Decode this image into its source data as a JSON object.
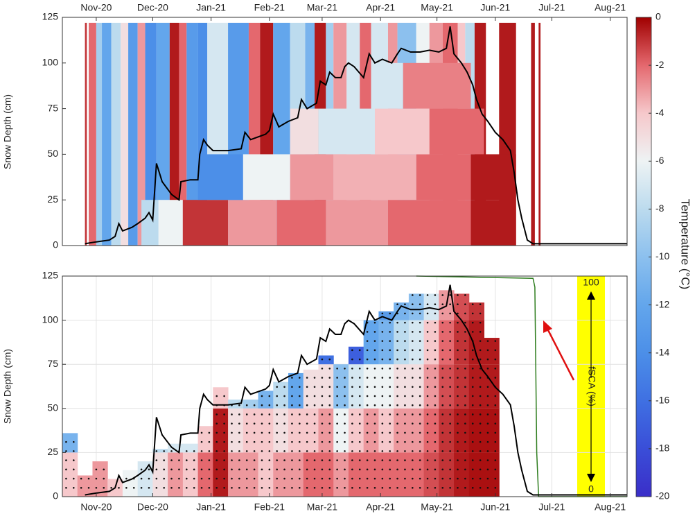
{
  "colorbar": {
    "label": "Temperature (°C)",
    "clim": [
      -20,
      0
    ],
    "ticks": [
      0,
      -2,
      -4,
      -6,
      -8,
      -10,
      -12,
      -14,
      -16,
      -18,
      -20
    ],
    "colors": [
      "#3a2ec8",
      "#3a4ed8",
      "#3f70e2",
      "#4c8fe8",
      "#63a6ec",
      "#8cc0ee",
      "#bcdbee",
      "#eef3f4",
      "#f6c8cb",
      "#e4686e",
      "#a00000"
    ]
  },
  "chart_data": [
    {
      "type": "stripes",
      "ylabel": "Snow Depth (cm)",
      "xlim": [
        0,
        300
      ],
      "ylim": [
        0,
        125
      ],
      "yticks": [
        0,
        25,
        50,
        75,
        100,
        125
      ],
      "grid": false,
      "xtick_side": "top",
      "xticks": [
        {
          "value": 18,
          "label": "Nov-20"
        },
        {
          "value": 48,
          "label": "Dec-20"
        },
        {
          "value": 79,
          "label": "Jan-21"
        },
        {
          "value": 110,
          "label": "Feb-21"
        },
        {
          "value": 138,
          "label": "Mar-21"
        },
        {
          "value": 169,
          "label": "Apr-21"
        },
        {
          "value": 199,
          "label": "May-21"
        },
        {
          "value": 230,
          "label": "Jun-21"
        },
        {
          "value": 260,
          "label": "Jul-21"
        },
        {
          "value": 291,
          "label": "Aug-21"
        }
      ],
      "cells": [
        [
          12,
          13,
          0,
          122,
          -1
        ],
        [
          14,
          18,
          0,
          122,
          -2
        ],
        [
          18,
          21,
          0,
          122,
          -9
        ],
        [
          21,
          26,
          0,
          122,
          -12
        ],
        [
          26,
          31,
          0,
          122,
          -8
        ],
        [
          31,
          35,
          0,
          122,
          -5
        ],
        [
          35,
          40,
          0,
          122,
          -13
        ],
        [
          40,
          44,
          0,
          122,
          -3
        ],
        [
          44,
          50,
          0,
          122,
          -14
        ],
        [
          50,
          57,
          0,
          122,
          -12
        ],
        [
          57,
          62,
          0,
          122,
          -0.5
        ],
        [
          62,
          66,
          0,
          122,
          -2
        ],
        [
          66,
          72,
          0,
          122,
          -13
        ],
        [
          72,
          77,
          0,
          122,
          -14
        ],
        [
          77,
          88,
          0,
          122,
          -7
        ],
        [
          88,
          99,
          0,
          122,
          -13
        ],
        [
          99,
          105,
          0,
          122,
          -2
        ],
        [
          105,
          112,
          0,
          122,
          -0.5
        ],
        [
          112,
          121,
          0,
          122,
          -12
        ],
        [
          121,
          129,
          0,
          122,
          -8
        ],
        [
          129,
          134,
          0,
          122,
          -11
        ],
        [
          134,
          140,
          0,
          122,
          -0.5
        ],
        [
          140,
          144,
          0,
          122,
          -9
        ],
        [
          144,
          151,
          0,
          122,
          -3
        ],
        [
          151,
          158,
          0,
          122,
          -7
        ],
        [
          158,
          164,
          0,
          122,
          -2
        ],
        [
          164,
          173,
          0,
          122,
          -7
        ],
        [
          173,
          178,
          0,
          122,
          -3
        ],
        [
          178,
          188,
          0,
          122,
          -10
        ],
        [
          188,
          195,
          0,
          122,
          -6
        ],
        [
          195,
          202,
          0,
          122,
          -3
        ],
        [
          202,
          210,
          0,
          122,
          -2
        ],
        [
          210,
          214,
          0,
          122,
          -4
        ],
        [
          214,
          219,
          0,
          122,
          -8
        ],
        [
          219,
          225,
          0,
          122,
          -0.5
        ],
        [
          232,
          241,
          0,
          122,
          -0.5
        ],
        [
          249,
          251,
          0,
          122,
          -0.5
        ],
        [
          253,
          254,
          0,
          122,
          -0.5
        ],
        [
          42,
          51,
          0,
          25,
          -8
        ],
        [
          51,
          64,
          0,
          25,
          -6
        ],
        [
          64,
          88,
          0,
          25,
          -1
        ],
        [
          88,
          114,
          0,
          25,
          -3
        ],
        [
          114,
          140,
          0,
          25,
          -2
        ],
        [
          140,
          173,
          0,
          25,
          -3
        ],
        [
          173,
          217,
          0,
          25,
          -2
        ],
        [
          217,
          241,
          0,
          25,
          -0.5
        ],
        [
          72,
          96,
          25,
          50,
          -14
        ],
        [
          96,
          121,
          25,
          50,
          -6
        ],
        [
          121,
          144,
          25,
          50,
          -3
        ],
        [
          144,
          188,
          25,
          50,
          -3.5
        ],
        [
          188,
          217,
          25,
          50,
          -2
        ],
        [
          217,
          241,
          25,
          50,
          -0.5
        ],
        [
          121,
          136,
          50,
          75,
          -5
        ],
        [
          136,
          166,
          50,
          75,
          -7
        ],
        [
          166,
          195,
          50,
          75,
          -4
        ],
        [
          195,
          224,
          50,
          75,
          -2
        ],
        [
          164,
          181,
          75,
          100,
          -7
        ],
        [
          181,
          217,
          75,
          100,
          -2.5
        ]
      ],
      "snow_depth": {
        "color": "#000000",
        "x": [
          12,
          18,
          25,
          28,
          30,
          32,
          37,
          40,
          44,
          46,
          48,
          50,
          53,
          58,
          62,
          63,
          68,
          72,
          73,
          75,
          77,
          80,
          88,
          95,
          97,
          100,
          108,
          110,
          112,
          115,
          120,
          125,
          127,
          130,
          135,
          137,
          140,
          142,
          145,
          148,
          150,
          152,
          155,
          160,
          163,
          166,
          170,
          175,
          178,
          180,
          185,
          190,
          195,
          200,
          204,
          206,
          208,
          212,
          215,
          218,
          220,
          223,
          226,
          230,
          234,
          238,
          240,
          242,
          244,
          247,
          250,
          300
        ],
        "values": [
          1,
          2,
          3,
          5,
          12,
          8,
          10,
          12,
          15,
          18,
          14,
          45,
          35,
          28,
          25,
          35,
          36,
          36,
          50,
          58,
          55,
          52,
          52,
          53,
          62,
          58,
          61,
          63,
          72,
          65,
          68,
          70,
          80,
          75,
          78,
          90,
          88,
          95,
          92,
          92,
          98,
          100,
          98,
          92,
          105,
          100,
          102,
          100,
          105,
          108,
          106,
          106,
          107,
          106,
          108,
          120,
          105,
          100,
          95,
          88,
          80,
          72,
          68,
          62,
          58,
          52,
          40,
          25,
          15,
          3,
          1,
          1
        ]
      }
    },
    {
      "type": "columns",
      "ylabel": "Snow Depth (cm)",
      "xlim": [
        0,
        300
      ],
      "ylim": [
        0,
        125
      ],
      "yticks": [
        0,
        25,
        50,
        75,
        100,
        125
      ],
      "grid": true,
      "xtick_side": "bottom",
      "xticks": [
        {
          "value": 18,
          "label": "Nov-20"
        },
        {
          "value": 48,
          "label": "Dec-20"
        },
        {
          "value": 79,
          "label": "Jan-21"
        },
        {
          "value": 110,
          "label": "Feb-21"
        },
        {
          "value": 138,
          "label": "Mar-21"
        },
        {
          "value": 169,
          "label": "Apr-21"
        },
        {
          "value": 199,
          "label": "May-21"
        },
        {
          "value": 230,
          "label": "Jun-21"
        },
        {
          "value": 260,
          "label": "Jul-21"
        },
        {
          "value": 291,
          "label": "Aug-21"
        }
      ],
      "y2lim": [
        0,
        100
      ],
      "y2ticks": [
        100,
        0
      ],
      "columns": [
        {
          "x": [
            0,
            8
          ],
          "top": 36,
          "temps": [
            -4,
            -11
          ]
        },
        {
          "x": [
            8,
            16
          ],
          "top": 12,
          "temps": [
            -3
          ]
        },
        {
          "x": [
            16,
            24
          ],
          "top": 20,
          "temps": [
            -3
          ]
        },
        {
          "x": [
            24,
            32
          ],
          "top": 10,
          "temps": [
            -4
          ]
        },
        {
          "x": [
            32,
            40
          ],
          "top": 15,
          "temps": [
            -6
          ]
        },
        {
          "x": [
            40,
            48
          ],
          "top": 20,
          "temps": [
            -7
          ]
        },
        {
          "x": [
            48,
            56
          ],
          "top": 27,
          "temps": [
            -5,
            -8
          ]
        },
        {
          "x": [
            56,
            64
          ],
          "top": 30,
          "temps": [
            -3,
            -7
          ]
        },
        {
          "x": [
            64,
            72
          ],
          "top": 30,
          "temps": [
            -4,
            -7
          ]
        },
        {
          "x": [
            72,
            80
          ],
          "top": 40,
          "temps": [
            -2,
            -4
          ]
        },
        {
          "x": [
            80,
            88
          ],
          "top": 62,
          "temps": [
            -0.5,
            -0.5,
            -4
          ]
        },
        {
          "x": [
            88,
            96
          ],
          "top": 55,
          "temps": [
            -3,
            -5,
            -8
          ]
        },
        {
          "x": [
            96,
            104
          ],
          "top": 55,
          "temps": [
            -3,
            -4,
            -9
          ]
        },
        {
          "x": [
            104,
            112
          ],
          "top": 60,
          "temps": [
            -4,
            -4,
            -11
          ]
        },
        {
          "x": [
            112,
            120
          ],
          "top": 65,
          "temps": [
            -3,
            -5,
            -8
          ]
        },
        {
          "x": [
            120,
            128
          ],
          "top": 70,
          "temps": [
            -3,
            -4,
            -12
          ]
        },
        {
          "x": [
            128,
            136
          ],
          "top": 72,
          "temps": [
            -2,
            -4,
            -5
          ]
        },
        {
          "x": [
            136,
            144
          ],
          "top": 80,
          "temps": [
            -2,
            -3,
            -5,
            -16
          ]
        },
        {
          "x": [
            144,
            152
          ],
          "top": 75,
          "temps": [
            -3,
            -6,
            -10
          ]
        },
        {
          "x": [
            152,
            160
          ],
          "top": 85,
          "temps": [
            -2,
            -4,
            -7,
            -17
          ]
        },
        {
          "x": [
            160,
            168
          ],
          "top": 100,
          "temps": [
            -2,
            -3,
            -6,
            -12
          ]
        },
        {
          "x": [
            168,
            176
          ],
          "top": 105,
          "temps": [
            -2,
            -4,
            -6,
            -11,
            -13
          ]
        },
        {
          "x": [
            176,
            184
          ],
          "top": 110,
          "temps": [
            -2,
            -3,
            -5,
            -8,
            -11
          ]
        },
        {
          "x": [
            184,
            192
          ],
          "top": 115,
          "temps": [
            -2,
            -3,
            -5,
            -7,
            -10
          ]
        },
        {
          "x": [
            192,
            200
          ],
          "top": 115,
          "temps": [
            -1.5,
            -2,
            -3,
            -4,
            -7
          ]
        },
        {
          "x": [
            200,
            208
          ],
          "top": 117,
          "temps": [
            -1,
            -1,
            -1.5,
            -2,
            -3
          ]
        },
        {
          "x": [
            208,
            216
          ],
          "top": 115,
          "temps": [
            -0.5,
            -0.5,
            -1,
            -1,
            -1.5
          ]
        },
        {
          "x": [
            216,
            224
          ],
          "top": 110,
          "temps": [
            -0.3,
            -0.3,
            -0.5,
            -0.5,
            -1
          ]
        },
        {
          "x": [
            224,
            232
          ],
          "top": 90,
          "temps": [
            -0.3,
            -0.3,
            -0.5,
            -0.5
          ]
        }
      ],
      "snow_depth": {
        "color": "#000000",
        "x": [
          12,
          18,
          25,
          28,
          30,
          32,
          37,
          40,
          44,
          46,
          48,
          50,
          53,
          58,
          62,
          63,
          68,
          72,
          73,
          75,
          77,
          80,
          88,
          95,
          97,
          100,
          108,
          110,
          112,
          115,
          120,
          125,
          127,
          130,
          135,
          137,
          140,
          142,
          145,
          148,
          150,
          152,
          155,
          160,
          163,
          166,
          170,
          175,
          178,
          180,
          185,
          190,
          195,
          200,
          204,
          206,
          208,
          212,
          215,
          218,
          220,
          223,
          226,
          230,
          234,
          238,
          240,
          242,
          244,
          247,
          250,
          300
        ],
        "values": [
          1,
          2,
          3,
          5,
          12,
          8,
          10,
          12,
          15,
          18,
          14,
          45,
          35,
          28,
          25,
          35,
          36,
          36,
          50,
          58,
          55,
          52,
          52,
          53,
          62,
          58,
          61,
          63,
          72,
          65,
          68,
          70,
          80,
          75,
          78,
          90,
          88,
          95,
          92,
          92,
          98,
          100,
          98,
          92,
          105,
          100,
          102,
          100,
          105,
          108,
          106,
          106,
          107,
          106,
          108,
          120,
          105,
          100,
          95,
          88,
          80,
          72,
          68,
          62,
          58,
          52,
          40,
          25,
          15,
          3,
          1,
          1
        ]
      },
      "fsca": {
        "name": "fSCA (%)",
        "color": "#2e7d1e",
        "axis": "y2",
        "x": [
          188,
          250,
          251,
          252,
          253,
          300
        ],
        "values": [
          100,
          99,
          95,
          20,
          0,
          0
        ]
      }
    }
  ]
}
